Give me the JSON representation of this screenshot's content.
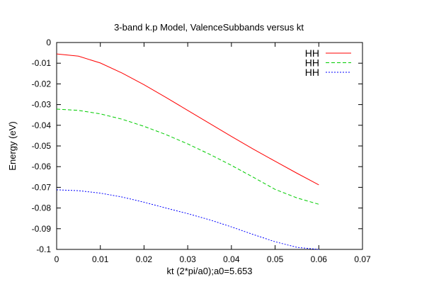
{
  "chart_data": {
    "type": "line",
    "title": "3-band k.p Model, ValenceSubbands versus kt",
    "xlabel": "kt (2*pi/a0);a0=5.653",
    "ylabel": "Energy (eV)",
    "xlim": [
      0,
      0.07
    ],
    "ylim": [
      -0.1,
      0
    ],
    "x_ticks": [
      "0",
      "0.01",
      "0.02",
      "0.03",
      "0.04",
      "0.05",
      "0.06",
      "0.07"
    ],
    "y_ticks": [
      "0",
      "-0.01",
      "-0.02",
      "-0.03",
      "-0.04",
      "-0.05",
      "-0.06",
      "-0.07",
      "-0.08",
      "-0.09",
      "-0.1"
    ],
    "grid": false,
    "legend_position": "top-right",
    "x": [
      0,
      0.005,
      0.01,
      0.015,
      0.02,
      0.025,
      0.03,
      0.035,
      0.04,
      0.045,
      0.05,
      0.055,
      0.06
    ],
    "series": [
      {
        "name": "HH",
        "color": "#ff0000",
        "dash": "solid",
        "values": [
          -0.0055,
          -0.0066,
          -0.0099,
          -0.0148,
          -0.0204,
          -0.0265,
          -0.0328,
          -0.0391,
          -0.0454,
          -0.0515,
          -0.0574,
          -0.0632,
          -0.0688
        ]
      },
      {
        "name": "HH",
        "color": "#00cc00",
        "dash": "dashed",
        "values": [
          -0.0322,
          -0.0328,
          -0.0345,
          -0.0371,
          -0.0405,
          -0.0445,
          -0.049,
          -0.054,
          -0.0594,
          -0.0651,
          -0.071,
          -0.0751,
          -0.0782
        ]
      },
      {
        "name": "HH",
        "color": "#0000ff",
        "dash": "dotted",
        "values": [
          -0.0712,
          -0.0716,
          -0.0728,
          -0.0747,
          -0.0772,
          -0.08,
          -0.0827,
          -0.0857,
          -0.0891,
          -0.0928,
          -0.0963,
          -0.099,
          -0.1
        ]
      }
    ]
  }
}
